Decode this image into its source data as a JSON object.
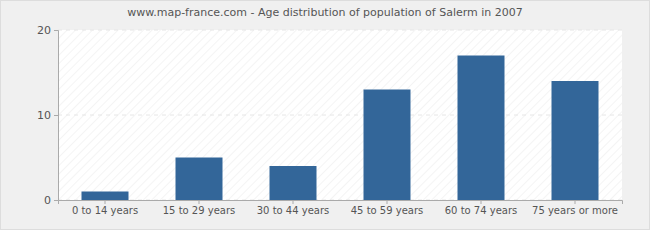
{
  "chart_data": {
    "type": "bar",
    "title": "www.map-france.com - Age distribution of population of Salerm in 2007",
    "categories": [
      "0 to 14 years",
      "15 to 29 years",
      "30 to 44 years",
      "45 to 59 years",
      "60 to 74 years",
      "75 years or more"
    ],
    "values": [
      1,
      5,
      4,
      13,
      17,
      14
    ],
    "color": "#336699",
    "ylim": [
      0,
      20
    ],
    "yticks": [
      0,
      10,
      20
    ],
    "grid": true
  }
}
